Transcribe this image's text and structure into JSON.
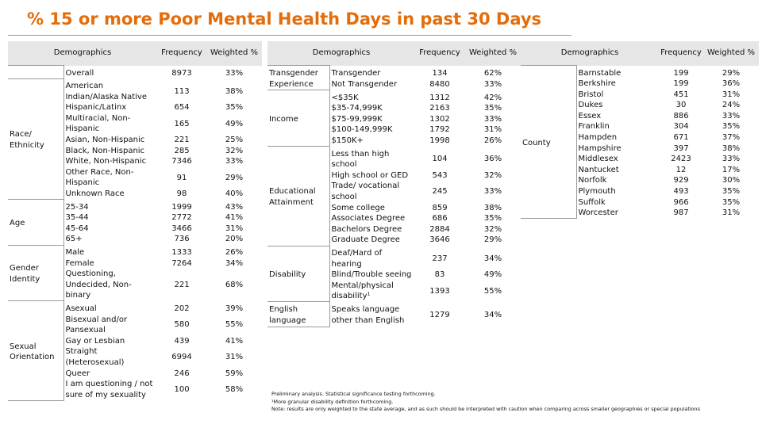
{
  "title": "% 15 or more Poor Mental Health Days in past 30 Days",
  "tables": [
    {
      "columns": [
        "Demographics",
        "Frequency",
        "Weighted %"
      ],
      "groups": [
        {
          "rows": [
            {
              "label": "Overall",
              "frequency": 8973,
              "weighted": "33%"
            }
          ]
        },
        {
          "label": "Race/ Ethnicity",
          "rows": [
            {
              "label": "American Indian/Alaska Native",
              "frequency": 113,
              "weighted": "38%"
            },
            {
              "label": "Hispanic/Latinx",
              "frequency": 654,
              "weighted": "35%"
            },
            {
              "label": "Multiracial, Non-Hispanic",
              "frequency": 165,
              "weighted": "49%"
            },
            {
              "label": "Asian, Non-Hispanic",
              "frequency": 221,
              "weighted": "25%"
            },
            {
              "label": "Black, Non-Hispanic",
              "frequency": 285,
              "weighted": "32%"
            },
            {
              "label": "White, Non-Hispanic",
              "frequency": 7346,
              "weighted": "33%"
            },
            {
              "label": "Other Race, Non-Hispanic",
              "frequency": 91,
              "weighted": "29%"
            },
            {
              "label": "Unknown Race",
              "frequency": 98,
              "weighted": "40%"
            }
          ]
        },
        {
          "label": "Age",
          "rows": [
            {
              "label": "25-34",
              "frequency": 1999,
              "weighted": "43%"
            },
            {
              "label": "35-44",
              "frequency": 2772,
              "weighted": "41%"
            },
            {
              "label": "45-64",
              "frequency": 3466,
              "weighted": "31%"
            },
            {
              "label": "65+",
              "frequency": 736,
              "weighted": "20%"
            }
          ]
        },
        {
          "label": "Gender Identity",
          "rows": [
            {
              "label": "Male",
              "frequency": 1333,
              "weighted": "26%"
            },
            {
              "label": "Female",
              "frequency": 7264,
              "weighted": "34%"
            },
            {
              "label": "Questioning, Undecided, Non-binary",
              "frequency": 221,
              "weighted": "68%"
            }
          ]
        },
        {
          "label": "Sexual Orientation",
          "rows": [
            {
              "label": "Asexual",
              "frequency": 202,
              "weighted": "39%"
            },
            {
              "label": "Bisexual and/or Pansexual",
              "frequency": 580,
              "weighted": "55%"
            },
            {
              "label": "Gay or Lesbian",
              "frequency": 439,
              "weighted": "41%"
            },
            {
              "label": "Straight (Heterosexual)",
              "frequency": 6994,
              "weighted": "31%"
            },
            {
              "label": "Queer",
              "frequency": 246,
              "weighted": "59%"
            },
            {
              "label": "I am questioning / not sure of my sexuality",
              "frequency": 100,
              "weighted": "58%"
            }
          ]
        }
      ]
    },
    {
      "columns": [
        "Demographics",
        "Frequency",
        "Weighted %"
      ],
      "groups": [
        {
          "label": "Transgender Experience",
          "rows": [
            {
              "label": "Transgender",
              "frequency": 134,
              "weighted": "62%"
            },
            {
              "label": "Not Transgender",
              "frequency": 8480,
              "weighted": "33%"
            }
          ]
        },
        {
          "label": "Income",
          "rows": [
            {
              "label": "<$35K",
              "frequency": 1312,
              "weighted": "42%"
            },
            {
              "label": "$35-74,999K",
              "frequency": 2163,
              "weighted": "35%"
            },
            {
              "label": "$75-99,999K",
              "frequency": 1302,
              "weighted": "33%"
            },
            {
              "label": "$100-149,999K",
              "frequency": 1792,
              "weighted": "31%"
            },
            {
              "label": "$150K+",
              "frequency": 1998,
              "weighted": "26%"
            }
          ]
        },
        {
          "label": "Educational Attainment",
          "rows": [
            {
              "label": "Less than high school",
              "frequency": 104,
              "weighted": "36%"
            },
            {
              "label": "High school or GED",
              "frequency": 543,
              "weighted": "32%"
            },
            {
              "label": "Trade/ vocational school",
              "frequency": 245,
              "weighted": "33%"
            },
            {
              "label": "Some college",
              "frequency": 859,
              "weighted": "38%"
            },
            {
              "label": "Associates Degree",
              "frequency": 686,
              "weighted": "35%"
            },
            {
              "label": "Bachelors Degree",
              "frequency": 2884,
              "weighted": "32%"
            },
            {
              "label": "Graduate Degree",
              "frequency": 3646,
              "weighted": "29%"
            }
          ]
        },
        {
          "label": "Disability",
          "rows": [
            {
              "label": "Deaf/Hard of hearing",
              "frequency": 237,
              "weighted": "34%"
            },
            {
              "label": "Blind/Trouble seeing",
              "frequency": 83,
              "weighted": "49%"
            },
            {
              "label": "Mental/physical disability¹",
              "frequency": 1393,
              "weighted": "55%"
            }
          ]
        },
        {
          "label": "English language",
          "rows": [
            {
              "label": "Speaks language other than English",
              "frequency": 1279,
              "weighted": "34%"
            }
          ]
        }
      ]
    },
    {
      "columns": [
        "Demographics",
        "Frequency",
        "Weighted %"
      ],
      "groups": [
        {
          "label": "County",
          "rows": [
            {
              "label": "Barnstable",
              "frequency": 199,
              "weighted": "29%"
            },
            {
              "label": "Berkshire",
              "frequency": 199,
              "weighted": "36%"
            },
            {
              "label": "Bristol",
              "frequency": 451,
              "weighted": "31%"
            },
            {
              "label": "Dukes",
              "frequency": 30,
              "weighted": "24%"
            },
            {
              "label": "Essex",
              "frequency": 886,
              "weighted": "33%"
            },
            {
              "label": "Franklin",
              "frequency": 304,
              "weighted": "35%"
            },
            {
              "label": "Hampden",
              "frequency": 671,
              "weighted": "37%"
            },
            {
              "label": "Hampshire",
              "frequency": 397,
              "weighted": "38%"
            },
            {
              "label": "Middlesex",
              "frequency": 2423,
              "weighted": "33%"
            },
            {
              "label": "Nantucket",
              "frequency": 12,
              "weighted": "17%"
            },
            {
              "label": "Norfolk",
              "frequency": 929,
              "weighted": "30%"
            },
            {
              "label": "Plymouth",
              "frequency": 493,
              "weighted": "35%"
            },
            {
              "label": "Suffolk",
              "frequency": 966,
              "weighted": "35%"
            },
            {
              "label": "Worcester",
              "frequency": 987,
              "weighted": "31%"
            }
          ]
        }
      ]
    }
  ],
  "footnotes": [
    "Preliminary analysis. Statistical significance testing forthcoming.",
    "¹More granular disability definition forthcoming.",
    "Note: results are only weighted to the state average, and as such should be interpreted with caution when comparing across smaller geographies or special populations"
  ]
}
